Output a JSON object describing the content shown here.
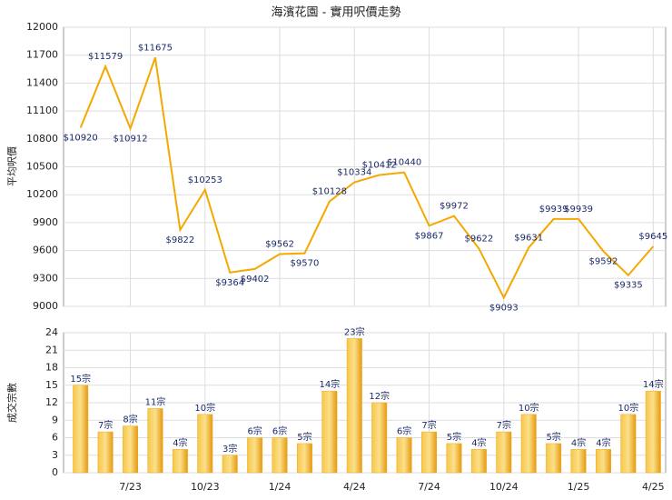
{
  "chart_data": [
    {
      "type": "line",
      "title": "海濱花園 - 實用呎價走勢",
      "y_label": "平均呎價",
      "color": "#f5a800",
      "grid": true,
      "categories": [
        null,
        null,
        "7/23",
        null,
        null,
        "10/23",
        null,
        null,
        "1/24",
        null,
        null,
        "4/24",
        null,
        null,
        "7/24",
        null,
        null,
        "10/24",
        null,
        null,
        "1/25",
        null,
        null,
        "4/25"
      ],
      "values": [
        10920,
        11579,
        10912,
        11675,
        9822,
        10253,
        9364,
        9402,
        9562,
        9570,
        10128,
        10334,
        10412,
        10440,
        9867,
        9972,
        9622,
        9093,
        9631,
        9939,
        9939,
        9592,
        9335,
        9645
      ],
      "value_labels": [
        "$10920",
        "$11579",
        "$10912",
        "$11675",
        "$9822",
        "$10253",
        "$9364",
        "$9402",
        "$9562",
        "$9570",
        "$10128",
        "$10334",
        "$10412",
        "$10440",
        "$9867",
        "$9972",
        "$9622",
        "$9093",
        "$9631",
        "$9939",
        "$9939",
        "$9592",
        "$9335",
        "$9645"
      ],
      "ylim": [
        9000,
        12000
      ],
      "yticks": [
        9000,
        9300,
        9600,
        9900,
        10200,
        10500,
        10800,
        11100,
        11400,
        11700,
        12000
      ]
    },
    {
      "type": "bar",
      "y_label": "成交宗數",
      "color": "#f0a818",
      "grid": true,
      "categories": [
        null,
        null,
        "7/23",
        null,
        null,
        "10/23",
        null,
        null,
        "1/24",
        null,
        null,
        "4/24",
        null,
        null,
        "7/24",
        null,
        null,
        "10/24",
        null,
        null,
        "1/25",
        null,
        null,
        "4/25"
      ],
      "values": [
        15,
        7,
        8,
        11,
        4,
        10,
        3,
        6,
        6,
        5,
        14,
        23,
        12,
        6,
        7,
        5,
        4,
        7,
        10,
        5,
        4,
        4,
        10,
        14
      ],
      "value_labels": [
        "15宗",
        "7宗",
        "8宗",
        "11宗",
        "4宗",
        "10宗",
        "3宗",
        "6宗",
        "6宗",
        "5宗",
        "14宗",
        "23宗",
        "12宗",
        "6宗",
        "7宗",
        "5宗",
        "4宗",
        "7宗",
        "10宗",
        "5宗",
        "4宗",
        "4宗",
        "10宗",
        "14宗"
      ],
      "ylim": [
        0,
        24
      ],
      "yticks": [
        0,
        3,
        6,
        9,
        12,
        15,
        18,
        21,
        24
      ]
    }
  ]
}
